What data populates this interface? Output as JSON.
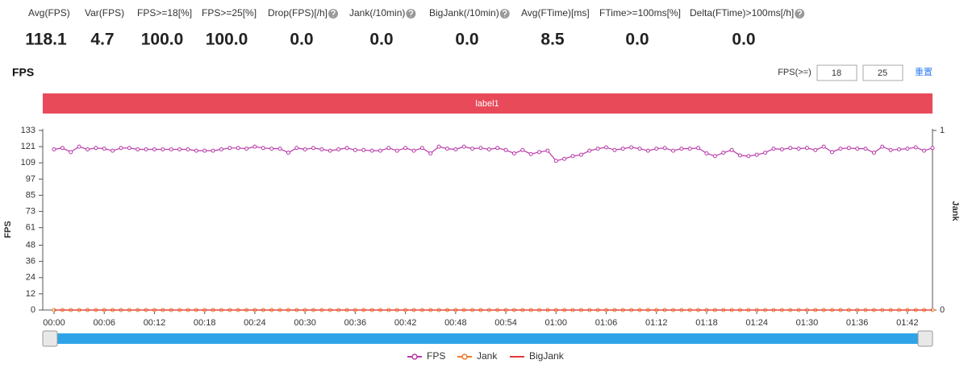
{
  "metrics": [
    {
      "label": "Avg(FPS)",
      "value": "118.1"
    },
    {
      "label": "Var(FPS)",
      "value": "4.7"
    },
    {
      "label": "FPS>=18[%]",
      "value": "100.0"
    },
    {
      "label": "FPS>=25[%]",
      "value": "100.0"
    },
    {
      "label": "Drop(FPS)[/h]",
      "value": "0.0"
    },
    {
      "label": "Jank(/10min)",
      "value": "0.0"
    },
    {
      "label": "BigJank(/10min)",
      "value": "0.0"
    },
    {
      "label": "Avg(FTime)[ms]",
      "value": "8.5"
    },
    {
      "label": "FTime>=100ms[%]",
      "value": "0.0"
    },
    {
      "label": "Delta(FTime)>100ms[/h]",
      "value": "0.0"
    }
  ],
  "filter": {
    "label": "FPS(>=)",
    "inputs": [
      18,
      25
    ],
    "reset": "重置"
  },
  "label_bar": "label1",
  "chart_data": {
    "type": "line",
    "title": "FPS",
    "ylabel": "FPS",
    "y2label": "Jank",
    "x": [
      0,
      1,
      2,
      3,
      4,
      5,
      6,
      7,
      8,
      9,
      10,
      11,
      12,
      13,
      14,
      15,
      16,
      17,
      18,
      19,
      20,
      21,
      22,
      23,
      24,
      25,
      26,
      27,
      28,
      29,
      30,
      31,
      32,
      33,
      34,
      35,
      36,
      37,
      38,
      39,
      40,
      41,
      42,
      43,
      44,
      45,
      46,
      47,
      48,
      49,
      50,
      51,
      52,
      53,
      54,
      55,
      56,
      57,
      58,
      59,
      60,
      61,
      62,
      63,
      64,
      65,
      66,
      67,
      68,
      69,
      70,
      71,
      72,
      73,
      74,
      75,
      76,
      77,
      78,
      79,
      80,
      81,
      82,
      83,
      84,
      85,
      86,
      87,
      88,
      89,
      90,
      91,
      92,
      93,
      94,
      95,
      96,
      97,
      98,
      99,
      100,
      101,
      102,
      103,
      104,
      105
    ],
    "xlim": [
      -1.35,
      105
    ],
    "xticks": [
      {
        "value": 0,
        "label": "00:00"
      },
      {
        "value": 6,
        "label": "00:06"
      },
      {
        "value": 12,
        "label": "00:12"
      },
      {
        "value": 18,
        "label": "00:18"
      },
      {
        "value": 24,
        "label": "00:24"
      },
      {
        "value": 30,
        "label": "00:30"
      },
      {
        "value": 36,
        "label": "00:36"
      },
      {
        "value": 42,
        "label": "00:42"
      },
      {
        "value": 48,
        "label": "00:48"
      },
      {
        "value": 54,
        "label": "00:54"
      },
      {
        "value": 60,
        "label": "01:00"
      },
      {
        "value": 66,
        "label": "01:06"
      },
      {
        "value": 72,
        "label": "01:12"
      },
      {
        "value": 78,
        "label": "01:18"
      },
      {
        "value": 84,
        "label": "01:24"
      },
      {
        "value": 90,
        "label": "01:30"
      },
      {
        "value": 96,
        "label": "01:36"
      },
      {
        "value": 102,
        "label": "01:42"
      }
    ],
    "ylim": [
      0,
      133
    ],
    "yticks": [
      0,
      12,
      24,
      36,
      48,
      61,
      73,
      85,
      97,
      109,
      121,
      133
    ],
    "y2lim": [
      0,
      1
    ],
    "y2ticks": [
      0,
      1
    ],
    "grid": false,
    "legend": "bottom",
    "series": [
      {
        "name": "FPS",
        "color": "#b83aa8",
        "marker": true,
        "values": [
          119,
          120,
          117,
          121,
          119,
          120,
          119.5,
          118,
          120,
          120,
          119,
          119,
          119,
          119,
          119,
          119,
          119,
          118,
          118,
          118,
          119,
          120,
          120,
          119.5,
          121,
          120,
          119.5,
          119.5,
          116.5,
          120,
          119,
          120,
          119,
          118,
          119,
          120,
          118.5,
          118.5,
          118,
          118,
          120,
          118,
          120,
          118,
          120,
          116,
          121,
          119.5,
          119,
          121,
          119.5,
          120,
          119,
          120,
          118.5,
          116,
          118.5,
          115.5,
          117,
          118,
          110.5,
          112,
          114,
          115,
          118,
          119.5,
          120.5,
          118.5,
          119.5,
          120.5,
          119.5,
          118,
          119.5,
          120,
          118,
          119.5,
          119.5,
          120,
          116,
          114,
          116.5,
          118.5,
          114.5,
          114,
          115,
          116.5,
          119.5,
          119,
          120,
          119.5,
          120,
          118.5,
          121,
          117,
          119.5,
          120,
          119.5,
          119.5,
          116.5,
          121,
          118.5,
          119,
          119.5,
          120.5,
          118,
          120
        ]
      },
      {
        "name": "Jank",
        "color": "#f07a2a",
        "marker": true,
        "axis": "y2",
        "values": [
          0,
          0,
          0,
          0,
          0,
          0,
          0,
          0,
          0,
          0,
          0,
          0,
          0,
          0,
          0,
          0,
          0,
          0,
          0,
          0,
          0,
          0,
          0,
          0,
          0,
          0,
          0,
          0,
          0,
          0,
          0,
          0,
          0,
          0,
          0,
          0,
          0,
          0,
          0,
          0,
          0,
          0,
          0,
          0,
          0,
          0,
          0,
          0,
          0,
          0,
          0,
          0,
          0,
          0,
          0,
          0,
          0,
          0,
          0,
          0,
          0,
          0,
          0,
          0,
          0,
          0,
          0,
          0,
          0,
          0,
          0,
          0,
          0,
          0,
          0,
          0,
          0,
          0,
          0,
          0,
          0,
          0,
          0,
          0,
          0,
          0,
          0,
          0,
          0,
          0,
          0,
          0,
          0,
          0,
          0,
          0,
          0,
          0,
          0,
          0,
          0,
          0,
          0,
          0,
          0,
          0
        ]
      },
      {
        "name": "BigJank",
        "color": "#e03a3a",
        "marker": false,
        "axis": "y2",
        "values": [
          0,
          0,
          0,
          0,
          0,
          0,
          0,
          0,
          0,
          0,
          0,
          0,
          0,
          0,
          0,
          0,
          0,
          0,
          0,
          0,
          0,
          0,
          0,
          0,
          0,
          0,
          0,
          0,
          0,
          0,
          0,
          0,
          0,
          0,
          0,
          0,
          0,
          0,
          0,
          0,
          0,
          0,
          0,
          0,
          0,
          0,
          0,
          0,
          0,
          0,
          0,
          0,
          0,
          0,
          0,
          0,
          0,
          0,
          0,
          0,
          0,
          0,
          0,
          0,
          0,
          0,
          0,
          0,
          0,
          0,
          0,
          0,
          0,
          0,
          0,
          0,
          0,
          0,
          0,
          0,
          0,
          0,
          0,
          0,
          0,
          0,
          0,
          0,
          0,
          0,
          0,
          0,
          0,
          0,
          0,
          0,
          0,
          0,
          0,
          0,
          0,
          0,
          0,
          0,
          0,
          0
        ]
      }
    ]
  }
}
